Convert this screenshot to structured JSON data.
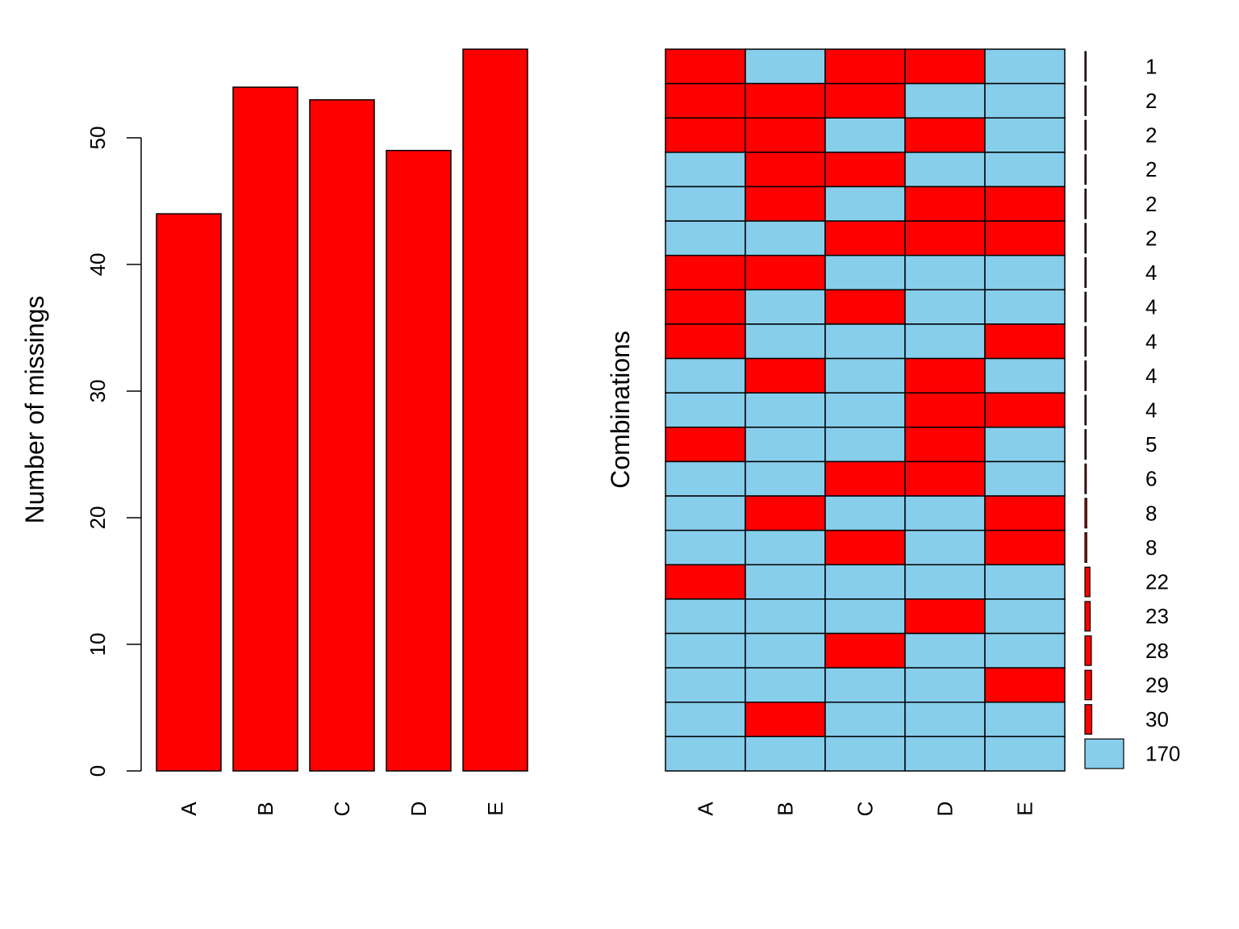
{
  "colors": {
    "missing": "#ff0000",
    "observed": "#87ceeb",
    "outline": "#000000",
    "background": "#ffffff"
  },
  "chart_data": [
    {
      "type": "bar",
      "categories": [
        "A",
        "B",
        "C",
        "D",
        "E"
      ],
      "values": [
        44,
        54,
        53,
        49,
        57
      ],
      "ylabel": "Number of missings",
      "ylim": [
        0,
        57
      ],
      "yticks": [
        "0",
        "10",
        "20",
        "30",
        "40",
        "50"
      ],
      "grid": false
    },
    {
      "type": "heatmap",
      "ylabel": "Combinations",
      "variables": [
        "A",
        "B",
        "C",
        "D",
        "E"
      ],
      "legend": "none",
      "rows": [
        {
          "pattern": [
            1,
            0,
            1,
            1,
            0
          ],
          "count": 1,
          "count_label": "1"
        },
        {
          "pattern": [
            1,
            1,
            1,
            0,
            0
          ],
          "count": 2,
          "count_label": "2"
        },
        {
          "pattern": [
            1,
            1,
            0,
            1,
            0
          ],
          "count": 2,
          "count_label": "2"
        },
        {
          "pattern": [
            0,
            1,
            1,
            0,
            0
          ],
          "count": 2,
          "count_label": "2"
        },
        {
          "pattern": [
            0,
            1,
            0,
            1,
            1
          ],
          "count": 2,
          "count_label": "2"
        },
        {
          "pattern": [
            0,
            0,
            1,
            1,
            1
          ],
          "count": 2,
          "count_label": "2"
        },
        {
          "pattern": [
            1,
            1,
            0,
            0,
            0
          ],
          "count": 4,
          "count_label": "4"
        },
        {
          "pattern": [
            1,
            0,
            1,
            0,
            0
          ],
          "count": 4,
          "count_label": "4"
        },
        {
          "pattern": [
            1,
            0,
            0,
            0,
            1
          ],
          "count": 4,
          "count_label": "4"
        },
        {
          "pattern": [
            0,
            1,
            0,
            1,
            0
          ],
          "count": 4,
          "count_label": "4"
        },
        {
          "pattern": [
            0,
            0,
            0,
            1,
            1
          ],
          "count": 4,
          "count_label": "4"
        },
        {
          "pattern": [
            1,
            0,
            0,
            1,
            0
          ],
          "count": 5,
          "count_label": "5"
        },
        {
          "pattern": [
            0,
            0,
            1,
            1,
            0
          ],
          "count": 6,
          "count_label": "6"
        },
        {
          "pattern": [
            0,
            1,
            0,
            0,
            1
          ],
          "count": 8,
          "count_label": "8"
        },
        {
          "pattern": [
            0,
            0,
            1,
            0,
            1
          ],
          "count": 8,
          "count_label": "8"
        },
        {
          "pattern": [
            1,
            0,
            0,
            0,
            0
          ],
          "count": 22,
          "count_label": "22"
        },
        {
          "pattern": [
            0,
            0,
            0,
            1,
            0
          ],
          "count": 23,
          "count_label": "23"
        },
        {
          "pattern": [
            0,
            0,
            1,
            0,
            0
          ],
          "count": 28,
          "count_label": "28"
        },
        {
          "pattern": [
            0,
            0,
            0,
            0,
            1
          ],
          "count": 29,
          "count_label": "29"
        },
        {
          "pattern": [
            0,
            1,
            0,
            0,
            0
          ],
          "count": 30,
          "count_label": "30"
        },
        {
          "pattern": [
            0,
            0,
            0,
            0,
            0
          ],
          "count": 170,
          "count_label": "170"
        }
      ]
    }
  ]
}
